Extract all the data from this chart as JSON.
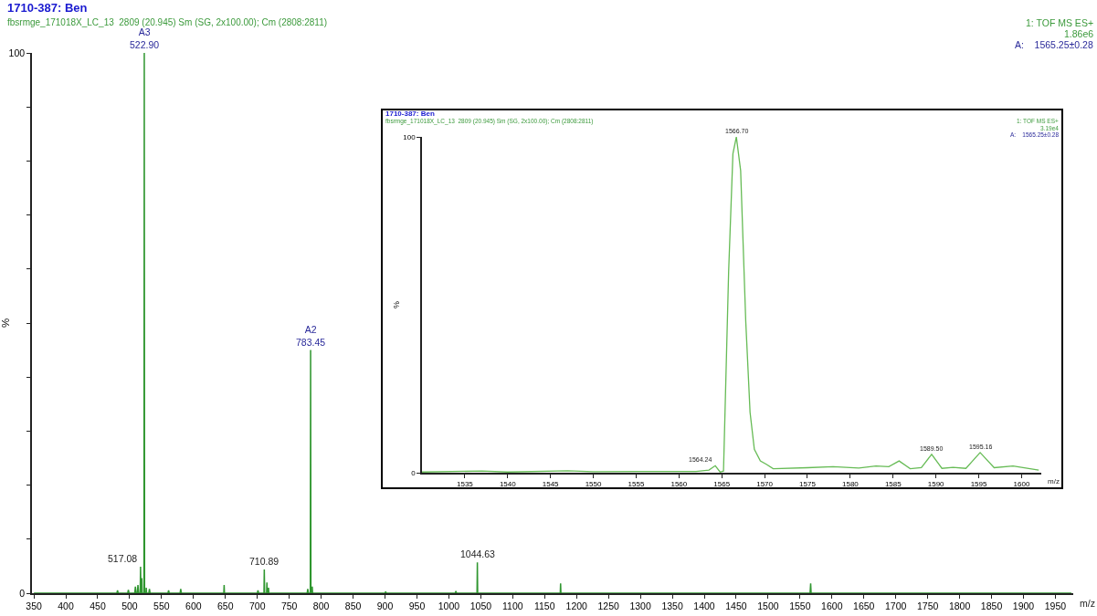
{
  "chart_data": [
    {
      "type": "line",
      "title": "1710-387: Ben",
      "subtitle": "fbsrmge_171018X_LC_13  2809 (20.945) Sm (SG, 2x100.00); Cm (2808:2811)",
      "xlabel": "m/z",
      "ylabel": "%",
      "annotations": [
        "1: TOF MS ES+",
        "1.86e6",
        "A:    1565.25±0.28",
        {
          "text": "A3\n522.90",
          "x": 522.9,
          "y": 100
        },
        {
          "text": "A2\n783.45",
          "x": 783.45,
          "y": 45
        },
        {
          "text": "517.08",
          "x": 517.08,
          "y": 4.9
        },
        {
          "text": "710.89",
          "x": 710.89,
          "y": 4.4
        },
        {
          "text": "1044.63",
          "x": 1044.63,
          "y": 5.7
        }
      ],
      "x": [
        350,
        480,
        481,
        482,
        497,
        498,
        499,
        508,
        509,
        510,
        512,
        513,
        514,
        516.5,
        517.08,
        517.6,
        518.5,
        519,
        519.5,
        522.4,
        522.9,
        523.4,
        525.5,
        526,
        526.5,
        530,
        531,
        532,
        560,
        561,
        562,
        579,
        580,
        581,
        647.5,
        648,
        648.5,
        700,
        701,
        702,
        710.4,
        710.89,
        711.4,
        714.5,
        715,
        715.5,
        717,
        717.5,
        718,
        778,
        779,
        780,
        782.95,
        783.45,
        783.95,
        785.5,
        786,
        786.5,
        900,
        901,
        902,
        1010,
        1011,
        1012,
        1044.1,
        1044.63,
        1045.1,
        1174.5,
        1175,
        1175.5,
        1565.8,
        1566.7,
        1567.4,
        1975
      ],
      "series": [
        {
          "color": "#2f962f",
          "values": [
            0,
            0,
            0.5,
            0,
            0,
            0.6,
            0,
            0,
            1.2,
            0,
            0,
            1.5,
            0,
            0,
            4.9,
            0,
            0,
            2.8,
            0,
            0,
            100,
            0,
            0,
            1,
            0,
            0,
            0.8,
            0,
            0,
            0.5,
            0,
            0,
            0.8,
            0,
            0,
            1.5,
            0,
            0,
            0.5,
            0,
            0,
            4.4,
            0,
            0,
            2,
            0,
            0,
            1,
            0,
            0,
            0.8,
            0,
            0,
            45,
            0,
            0,
            1.2,
            0,
            0,
            0.3,
            0,
            0,
            0.4,
            0,
            0,
            5.7,
            0,
            0,
            1.8,
            0,
            0,
            1.8,
            0,
            0
          ]
        }
      ],
      "xlim": [
        347,
        1978
      ],
      "ylim": [
        0,
        100
      ],
      "xticks": [
        350,
        400,
        450,
        500,
        550,
        600,
        650,
        700,
        750,
        800,
        850,
        900,
        950,
        1000,
        1050,
        1100,
        1150,
        1200,
        1250,
        1300,
        1350,
        1400,
        1450,
        1500,
        1550,
        1600,
        1650,
        1700,
        1750,
        1800,
        1850,
        1900,
        1950
      ],
      "yticks": [
        0,
        {
          "value": 10,
          "label": null
        },
        {
          "value": 20,
          "label": null
        },
        {
          "value": 30,
          "label": null
        },
        {
          "value": 40,
          "label": null
        },
        {
          "value": 50,
          "label": null
        },
        {
          "value": 60,
          "label": null
        },
        {
          "value": 70,
          "label": null
        },
        {
          "value": 80,
          "label": null
        },
        {
          "value": 90,
          "label": null
        },
        100
      ]
    },
    {
      "type": "line",
      "title": "1710-387: Ben",
      "subtitle": "fbsrmge_171018X_LC_13  2809 (20.945) Sm (SG, 2x100.00); Cm (2808:2811)",
      "xlabel": "m/z",
      "ylabel": "%",
      "annotations": [
        "1: TOF MS ES+",
        "3.19e4",
        "A:    1565.25±0.28",
        {
          "text": "1566.70",
          "x": 1566.7,
          "y": 100
        },
        {
          "text": "1564.24",
          "x": 1564.24,
          "y": 2.1
        },
        {
          "text": "1589.50",
          "x": 1589.5,
          "y": 5.5
        },
        {
          "text": "1595.16",
          "x": 1595.16,
          "y": 6
        }
      ],
      "x": [
        1530,
        1537,
        1540,
        1547,
        1550,
        1555,
        1562,
        1563.5,
        1564.24,
        1564.8,
        1565.2,
        1565.8,
        1566.3,
        1566.7,
        1567.2,
        1567.8,
        1568.3,
        1568.8,
        1569.5,
        1570.2,
        1571,
        1575,
        1578,
        1581,
        1583,
        1584.5,
        1585.7,
        1587,
        1588.3,
        1589.5,
        1590.7,
        1592,
        1593.5,
        1595.16,
        1596.8,
        1599,
        1602
      ],
      "series": [
        {
          "color": "#66bb55",
          "values": [
            0.2,
            0.5,
            0.2,
            0.6,
            0.3,
            0.4,
            0.4,
            0.8,
            2.1,
            0.2,
            0.5,
            60,
            95,
            100,
            90,
            45,
            18,
            7,
            3.5,
            2.5,
            1.2,
            1.5,
            1.8,
            1.4,
            2,
            1.8,
            3.5,
            1.2,
            1.5,
            5.5,
            1.3,
            1.6,
            1.3,
            6,
            1.5,
            2,
            0.8
          ]
        }
      ],
      "xlim": [
        1530,
        1602.3
      ],
      "ylim": [
        0,
        100
      ],
      "xticks": [
        1535,
        1540,
        1545,
        1550,
        1555,
        1560,
        1565,
        1570,
        1575,
        1580,
        1585,
        1590,
        1595,
        1600
      ],
      "yticks": [
        0,
        100
      ]
    }
  ]
}
